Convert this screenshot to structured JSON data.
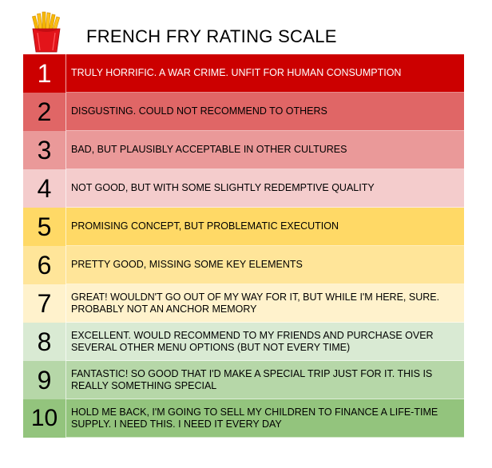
{
  "title": "FRENCH FRY RATING SCALE",
  "icon": "french-fries-icon",
  "rows": [
    {
      "number": "1",
      "text": "TRULY HORRIFIC. A WAR CRIME. UNFIT FOR HUMAN CONSUMPTION",
      "color": "#cc0000",
      "text_color": "#ffffff",
      "num_color": "#ffffff"
    },
    {
      "number": "2",
      "text": "DISGUSTING. COULD NOT RECOMMEND TO OTHERS",
      "color": "#e06666",
      "text_color": "#000000",
      "num_color": "#000000"
    },
    {
      "number": "3",
      "text": "BAD, BUT PLAUSIBLY ACCEPTABLE IN OTHER CULTURES",
      "color": "#ea9999",
      "text_color": "#000000",
      "num_color": "#000000"
    },
    {
      "number": "4",
      "text": "NOT GOOD, BUT WITH SOME SLIGHTLY REDEMPTIVE QUALITY",
      "color": "#f4cccc",
      "text_color": "#000000",
      "num_color": "#000000"
    },
    {
      "number": "5",
      "text": "PROMISING CONCEPT, BUT PROBLEMATIC EXECUTION",
      "color": "#ffd966",
      "text_color": "#000000",
      "num_color": "#000000"
    },
    {
      "number": "6",
      "text": "PRETTY GOOD, MISSING SOME KEY ELEMENTS",
      "color": "#ffe599",
      "text_color": "#000000",
      "num_color": "#000000"
    },
    {
      "number": "7",
      "text": "GREAT! WOULDN'T GO OUT OF MY WAY FOR IT, BUT WHILE I'M HERE, SURE. PROBABLY NOT AN ANCHOR MEMORY",
      "color": "#fff2cc",
      "text_color": "#000000",
      "num_color": "#000000"
    },
    {
      "number": "8",
      "text": "EXCELLENT. WOULD RECOMMEND TO MY FRIENDS AND PURCHASE OVER SEVERAL OTHER MENU OPTIONS (BUT NOT EVERY TIME)",
      "color": "#d9ead3",
      "text_color": "#000000",
      "num_color": "#000000"
    },
    {
      "number": "9",
      "text": "FANTASTIC! SO GOOD THAT I'D MAKE A SPECIAL TRIP JUST FOR IT. THIS IS REALLY SOMETHING SPECIAL",
      "color": "#b6d7a8",
      "text_color": "#000000",
      "num_color": "#000000"
    },
    {
      "number": "10",
      "text": "HOLD ME BACK, I'M GOING TO SELL MY CHILDREN TO FINANCE A LIFE-TIME SUPPLY. I NEED THIS. I NEED IT EVERY DAY",
      "color": "#93c47d",
      "text_color": "#000000",
      "num_color": "#000000"
    }
  ]
}
